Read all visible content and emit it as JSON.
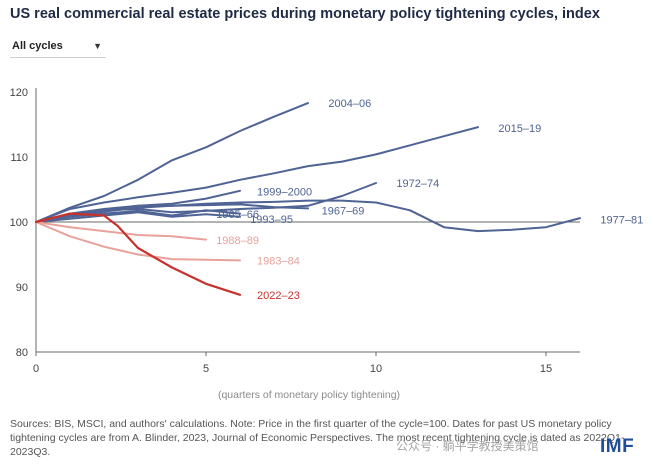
{
  "title": "US real commercial real estate prices during monetary policy tightening cycles, index",
  "dropdown": {
    "label": "All cycles",
    "caret": "▼"
  },
  "footnote": "Sources: BIS, MSCI, and authors' calculations. Note: Price in the first quarter of the cycle=100. Dates for past US monetary policy tightening cycles are from A. Blinder, 2023, Journal of Economic Perspectives. The most recent tightening cycle is dated as 2022Q1-2023Q3.",
  "logo": "IMF",
  "watermark": "公众号 · 躺平学教授美策馆",
  "chart_data": {
    "type": "line",
    "title": "US real commercial real estate prices during monetary policy tightening cycles, index",
    "xlabel": "(quarters of monetary policy tightening)",
    "ylabel": "",
    "xlim": [
      0,
      16
    ],
    "ylim": [
      80,
      120
    ],
    "xticks": [
      0,
      5,
      10,
      15
    ],
    "yticks": [
      80,
      90,
      100,
      110,
      120
    ],
    "reference_line": 100,
    "grid": false,
    "series": [
      {
        "name": "2004–06",
        "color": "#4f6394",
        "x": [
          0,
          1,
          2,
          3,
          4,
          5,
          6,
          7,
          8
        ],
        "y": [
          100,
          102.2,
          104,
          106.5,
          109.5,
          111.5,
          114,
          116.2,
          118.3
        ]
      },
      {
        "name": "2015–19",
        "color": "#4f6394",
        "x": [
          0,
          1,
          2,
          3,
          4,
          5,
          6,
          7,
          8,
          9,
          10,
          11,
          12,
          13
        ],
        "y": [
          100,
          102,
          103,
          103.8,
          104.5,
          105.3,
          106.5,
          107.5,
          108.6,
          109.3,
          110.4,
          111.8,
          113.2,
          114.6
        ]
      },
      {
        "name": "1972–74",
        "color": "#4f6394",
        "x": [
          0,
          1,
          2,
          3,
          4,
          5,
          6,
          7,
          8,
          9,
          10
        ],
        "y": [
          100,
          101,
          101.8,
          102,
          101.5,
          101.7,
          102,
          102.2,
          102.5,
          104,
          106
        ]
      },
      {
        "name": "1999–2000",
        "color": "#4f6394",
        "x": [
          0,
          1,
          2,
          3,
          4,
          5,
          6
        ],
        "y": [
          100,
          101.3,
          102,
          102.5,
          102.8,
          103.6,
          104.8
        ]
      },
      {
        "name": "1965–66",
        "color": "#4f6394",
        "x": [
          0,
          1,
          2,
          3,
          4,
          5,
          6
        ],
        "y": [
          100,
          100.8,
          101.3,
          101.7,
          101,
          101.8,
          101.3
        ]
      },
      {
        "name": "1993–95",
        "color": "#4f6394",
        "x": [
          0,
          1,
          2,
          3,
          4,
          5,
          6
        ],
        "y": [
          100,
          100.5,
          101,
          101.5,
          100.8,
          101.2,
          100.8
        ]
      },
      {
        "name": "1967–69",
        "color": "#4f6394",
        "x": [
          0,
          1,
          2,
          3,
          4,
          5,
          6,
          7,
          8
        ],
        "y": [
          100,
          101,
          101.6,
          102.2,
          102.5,
          102.6,
          102.7,
          102.3,
          102.1
        ]
      },
      {
        "name": "1977–81",
        "color": "#4f6394",
        "x": [
          0,
          1,
          2,
          3,
          4,
          5,
          6,
          7,
          8,
          9,
          10,
          11,
          12,
          13,
          14,
          15,
          16
        ],
        "y": [
          100,
          101.2,
          101.8,
          102.5,
          102.5,
          102.8,
          103,
          103.1,
          103.3,
          103.3,
          103,
          101.8,
          99.2,
          98.6,
          98.8,
          99.2,
          100.6
        ]
      },
      {
        "name": "1988–89",
        "color": "#e8a29b",
        "x": [
          0,
          1,
          2,
          3,
          4,
          5
        ],
        "y": [
          100,
          99.2,
          98.6,
          98,
          97.8,
          97.3
        ]
      },
      {
        "name": "1983–84",
        "color": "#e8a29b",
        "x": [
          0,
          1,
          2,
          3,
          4,
          5,
          6
        ],
        "y": [
          100,
          97.8,
          96.2,
          95,
          94.3,
          94.2,
          94.1
        ]
      },
      {
        "name": "2022–23",
        "color": "#c8322d",
        "x": [
          0,
          1,
          2,
          2.4,
          3,
          4,
          5,
          6
        ],
        "y": [
          100,
          101.3,
          101,
          99.4,
          96,
          93,
          90.5,
          88.8
        ]
      }
    ],
    "labels": [
      {
        "series": "2004–06",
        "text": "2004–06",
        "x": 8.6,
        "y": 118.3
      },
      {
        "series": "2015–19",
        "text": "2015–19",
        "x": 13.6,
        "y": 114.5
      },
      {
        "series": "1972–74",
        "text": "1972–74",
        "x": 10.6,
        "y": 106
      },
      {
        "series": "1999–2000",
        "text": "1999–2000",
        "x": 6.5,
        "y": 104.7
      },
      {
        "series": "1965–66",
        "text": "1965–66",
        "x": 5.3,
        "y": 101.2
      },
      {
        "series": "1993–95",
        "text": "1993–95",
        "x": 6.3,
        "y": 100.5
      },
      {
        "series": "1967–69",
        "text": "1967–69",
        "x": 8.4,
        "y": 101.8
      },
      {
        "series": "1977–81",
        "text": "1977–81",
        "x": 16.6,
        "y": 100.4
      },
      {
        "series": "1988–89",
        "text": "1988–89",
        "x": 5.3,
        "y": 97.2
      },
      {
        "series": "1983–84",
        "text": "1983–84",
        "x": 6.5,
        "y": 94.1
      },
      {
        "series": "2022–23",
        "text": "2022–23",
        "x": 6.5,
        "y": 88.8
      }
    ]
  }
}
